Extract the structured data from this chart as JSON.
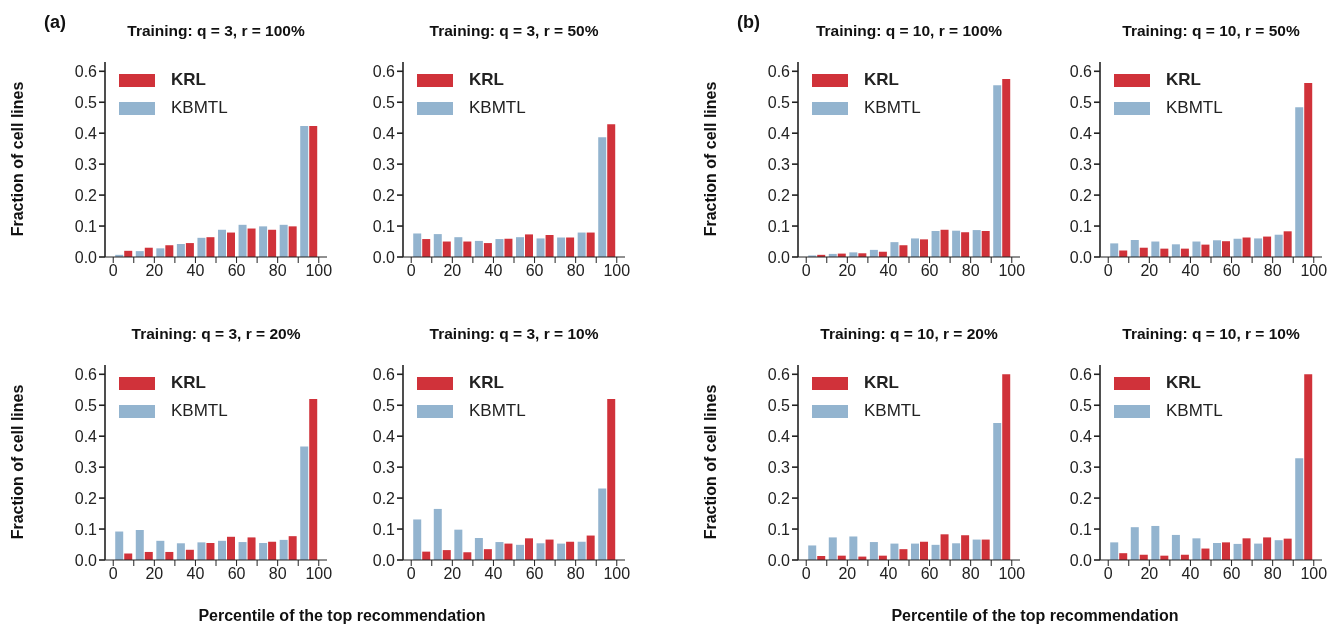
{
  "chart_data": [
    {
      "type": "bar",
      "title": "Training: q = 3, r = 100%",
      "ylabel": "Fraction of cell lines",
      "annotations": [
        "(a)"
      ],
      "legend": "top left",
      "x": [
        5,
        15,
        25,
        35,
        45,
        55,
        65,
        75,
        85,
        95
      ],
      "xlim": [
        -4,
        104
      ],
      "ylim": [
        0,
        0.63
      ],
      "xticks": [
        0,
        {
          "value": 10,
          "label": null
        },
        20,
        {
          "value": 30,
          "label": null
        },
        40,
        {
          "value": 50,
          "label": null
        },
        60,
        {
          "value": 70,
          "label": null
        },
        80,
        {
          "value": 90,
          "label": null
        },
        100
      ],
      "yticks": [
        {
          "value": 0,
          "label": "0.0"
        },
        {
          "value": 0.1,
          "label": "0.1"
        },
        {
          "value": 0.2,
          "label": "0.2"
        },
        {
          "value": 0.3,
          "label": "0.3"
        },
        {
          "value": 0.4,
          "label": "0.4"
        },
        {
          "value": 0.5,
          "label": "0.5"
        },
        {
          "value": 0.6,
          "label": "0.6"
        }
      ],
      "series": [
        {
          "name": "KRL",
          "color": "#d0323a",
          "values": [
            0.02,
            0.03,
            0.038,
            0.045,
            0.064,
            0.079,
            0.092,
            0.088,
            0.099,
            0.423
          ]
        },
        {
          "name": "KBMTL",
          "color": "#93b4cf",
          "values": [
            0.007,
            0.019,
            0.028,
            0.042,
            0.062,
            0.088,
            0.104,
            0.099,
            0.104,
            0.423
          ]
        }
      ]
    },
    {
      "type": "bar",
      "title": "Training: q = 3, r = 50%",
      "legend": "top left",
      "x": [
        5,
        15,
        25,
        35,
        45,
        55,
        65,
        75,
        85,
        95
      ],
      "xlim": [
        -4,
        104
      ],
      "ylim": [
        0,
        0.63
      ],
      "xticks": [
        0,
        {
          "value": 10,
          "label": null
        },
        20,
        {
          "value": 30,
          "label": null
        },
        40,
        {
          "value": 50,
          "label": null
        },
        60,
        {
          "value": 70,
          "label": null
        },
        80,
        {
          "value": 90,
          "label": null
        },
        100
      ],
      "yticks": [
        {
          "value": 0,
          "label": "0.0"
        },
        {
          "value": 0.1,
          "label": "0.1"
        },
        {
          "value": 0.2,
          "label": "0.2"
        },
        {
          "value": 0.3,
          "label": "0.3"
        },
        {
          "value": 0.4,
          "label": "0.4"
        },
        {
          "value": 0.5,
          "label": "0.5"
        },
        {
          "value": 0.6,
          "label": "0.6"
        }
      ],
      "series": [
        {
          "name": "KRL",
          "color": "#d0323a",
          "values": [
            0.058,
            0.05,
            0.05,
            0.045,
            0.059,
            0.073,
            0.071,
            0.063,
            0.079,
            0.429
          ]
        },
        {
          "name": "KBMTL",
          "color": "#93b4cf",
          "values": [
            0.076,
            0.074,
            0.064,
            0.052,
            0.058,
            0.064,
            0.06,
            0.063,
            0.079,
            0.387
          ]
        }
      ]
    },
    {
      "type": "bar",
      "title": "Training: q = 10, r = 100%",
      "ylabel": "Fraction of cell lines",
      "annotations": [
        "(b)"
      ],
      "legend": "top left",
      "x": [
        5,
        15,
        25,
        35,
        45,
        55,
        65,
        75,
        85,
        95
      ],
      "xlim": [
        -4,
        104
      ],
      "ylim": [
        0,
        0.63
      ],
      "xticks": [
        0,
        {
          "value": 10,
          "label": null
        },
        20,
        {
          "value": 30,
          "label": null
        },
        40,
        {
          "value": 50,
          "label": null
        },
        60,
        {
          "value": 70,
          "label": null
        },
        80,
        {
          "value": 90,
          "label": null
        },
        100
      ],
      "yticks": [
        {
          "value": 0,
          "label": "0.0"
        },
        {
          "value": 0.1,
          "label": "0.1"
        },
        {
          "value": 0.2,
          "label": "0.2"
        },
        {
          "value": 0.3,
          "label": "0.3"
        },
        {
          "value": 0.4,
          "label": "0.4"
        },
        {
          "value": 0.5,
          "label": "0.5"
        },
        {
          "value": 0.6,
          "label": "0.6"
        }
      ],
      "series": [
        {
          "name": "KRL",
          "color": "#d0323a",
          "values": [
            0.007,
            0.011,
            0.012,
            0.017,
            0.038,
            0.057,
            0.088,
            0.08,
            0.084,
            0.575
          ]
        },
        {
          "name": "KBMTL",
          "color": "#93b4cf",
          "values": [
            0.005,
            0.01,
            0.015,
            0.023,
            0.048,
            0.06,
            0.084,
            0.085,
            0.087,
            0.555
          ]
        }
      ]
    },
    {
      "type": "bar",
      "title": "Training: q = 10, r = 50%",
      "legend": "top left",
      "x": [
        5,
        15,
        25,
        35,
        45,
        55,
        65,
        75,
        85,
        95
      ],
      "xlim": [
        -4,
        104
      ],
      "ylim": [
        0,
        0.63
      ],
      "xticks": [
        0,
        {
          "value": 10,
          "label": null
        },
        20,
        {
          "value": 30,
          "label": null
        },
        40,
        {
          "value": 50,
          "label": null
        },
        60,
        {
          "value": 70,
          "label": null
        },
        80,
        {
          "value": 90,
          "label": null
        },
        100
      ],
      "yticks": [
        {
          "value": 0,
          "label": "0.0"
        },
        {
          "value": 0.1,
          "label": "0.1"
        },
        {
          "value": 0.2,
          "label": "0.2"
        },
        {
          "value": 0.3,
          "label": "0.3"
        },
        {
          "value": 0.4,
          "label": "0.4"
        },
        {
          "value": 0.5,
          "label": "0.5"
        },
        {
          "value": 0.6,
          "label": "0.6"
        }
      ],
      "series": [
        {
          "name": "KRL",
          "color": "#d0323a",
          "values": [
            0.021,
            0.03,
            0.027,
            0.027,
            0.04,
            0.051,
            0.063,
            0.066,
            0.083,
            0.562
          ]
        },
        {
          "name": "KBMTL",
          "color": "#93b4cf",
          "values": [
            0.044,
            0.055,
            0.05,
            0.041,
            0.05,
            0.054,
            0.059,
            0.06,
            0.072,
            0.484
          ]
        }
      ]
    },
    {
      "type": "bar",
      "title": "Training: q = 3, r = 20%",
      "ylabel": "Fraction of cell lines",
      "xlabel": "Percentile of the top recommendation",
      "legend": "top left",
      "x": [
        5,
        15,
        25,
        35,
        45,
        55,
        65,
        75,
        85,
        95
      ],
      "xlim": [
        -4,
        104
      ],
      "ylim": [
        0,
        0.63
      ],
      "xticks": [
        0,
        {
          "value": 10,
          "label": null
        },
        20,
        {
          "value": 30,
          "label": null
        },
        40,
        {
          "value": 50,
          "label": null
        },
        60,
        {
          "value": 70,
          "label": null
        },
        80,
        {
          "value": 90,
          "label": null
        },
        100
      ],
      "yticks": [
        {
          "value": 0,
          "label": "0.0"
        },
        {
          "value": 0.1,
          "label": "0.1"
        },
        {
          "value": 0.2,
          "label": "0.2"
        },
        {
          "value": 0.3,
          "label": "0.3"
        },
        {
          "value": 0.4,
          "label": "0.4"
        },
        {
          "value": 0.5,
          "label": "0.5"
        },
        {
          "value": 0.6,
          "label": "0.6"
        }
      ],
      "series": [
        {
          "name": "KRL",
          "color": "#d0323a",
          "values": [
            0.021,
            0.026,
            0.026,
            0.033,
            0.055,
            0.075,
            0.073,
            0.059,
            0.077,
            0.52
          ]
        },
        {
          "name": "KBMTL",
          "color": "#93b4cf",
          "values": [
            0.092,
            0.097,
            0.062,
            0.054,
            0.057,
            0.062,
            0.058,
            0.055,
            0.065,
            0.367
          ]
        }
      ]
    },
    {
      "type": "bar",
      "title": "Training: q = 3, r = 10%",
      "legend": "top left",
      "x": [
        5,
        15,
        25,
        35,
        45,
        55,
        65,
        75,
        85,
        95
      ],
      "xlim": [
        -4,
        104
      ],
      "ylim": [
        0,
        0.63
      ],
      "xticks": [
        0,
        {
          "value": 10,
          "label": null
        },
        20,
        {
          "value": 30,
          "label": null
        },
        40,
        {
          "value": 50,
          "label": null
        },
        60,
        {
          "value": 70,
          "label": null
        },
        80,
        {
          "value": 90,
          "label": null
        },
        100
      ],
      "yticks": [
        {
          "value": 0,
          "label": "0.0"
        },
        {
          "value": 0.1,
          "label": "0.1"
        },
        {
          "value": 0.2,
          "label": "0.2"
        },
        {
          "value": 0.3,
          "label": "0.3"
        },
        {
          "value": 0.4,
          "label": "0.4"
        },
        {
          "value": 0.5,
          "label": "0.5"
        },
        {
          "value": 0.6,
          "label": "0.6"
        }
      ],
      "series": [
        {
          "name": "KRL",
          "color": "#d0323a",
          "values": [
            0.027,
            0.032,
            0.025,
            0.035,
            0.053,
            0.07,
            0.066,
            0.059,
            0.079,
            0.52
          ]
        },
        {
          "name": "KBMTL",
          "color": "#93b4cf",
          "values": [
            0.131,
            0.165,
            0.098,
            0.071,
            0.058,
            0.049,
            0.054,
            0.053,
            0.059,
            0.231
          ]
        }
      ]
    },
    {
      "type": "bar",
      "title": "Training: q = 10, r = 20%",
      "ylabel": "Fraction of cell lines",
      "xlabel": "Percentile of the top recommendation",
      "legend": "top left",
      "x": [
        5,
        15,
        25,
        35,
        45,
        55,
        65,
        75,
        85,
        95
      ],
      "xlim": [
        -4,
        104
      ],
      "ylim": [
        0,
        0.63
      ],
      "xticks": [
        0,
        {
          "value": 10,
          "label": null
        },
        20,
        {
          "value": 30,
          "label": null
        },
        40,
        {
          "value": 50,
          "label": null
        },
        60,
        {
          "value": 70,
          "label": null
        },
        80,
        {
          "value": 90,
          "label": null
        },
        100
      ],
      "yticks": [
        {
          "value": 0,
          "label": "0.0"
        },
        {
          "value": 0.1,
          "label": "0.1"
        },
        {
          "value": 0.2,
          "label": "0.2"
        },
        {
          "value": 0.3,
          "label": "0.3"
        },
        {
          "value": 0.4,
          "label": "0.4"
        },
        {
          "value": 0.5,
          "label": "0.5"
        },
        {
          "value": 0.6,
          "label": "0.6"
        }
      ],
      "series": [
        {
          "name": "KRL",
          "color": "#d0323a",
          "values": [
            0.013,
            0.014,
            0.011,
            0.014,
            0.035,
            0.059,
            0.083,
            0.08,
            0.066,
            0.6
          ]
        },
        {
          "name": "KBMTL",
          "color": "#93b4cf",
          "values": [
            0.047,
            0.073,
            0.076,
            0.058,
            0.053,
            0.053,
            0.049,
            0.054,
            0.066,
            0.443
          ]
        }
      ]
    },
    {
      "type": "bar",
      "title": "Training: q = 10, r = 10%",
      "legend": "top left",
      "x": [
        5,
        15,
        25,
        35,
        45,
        55,
        65,
        75,
        85,
        95
      ],
      "xlim": [
        -4,
        104
      ],
      "ylim": [
        0,
        0.63
      ],
      "xticks": [
        0,
        {
          "value": 10,
          "label": null
        },
        20,
        {
          "value": 30,
          "label": null
        },
        40,
        {
          "value": 50,
          "label": null
        },
        60,
        {
          "value": 70,
          "label": null
        },
        80,
        {
          "value": 90,
          "label": null
        },
        100
      ],
      "yticks": [
        {
          "value": 0,
          "label": "0.0"
        },
        {
          "value": 0.1,
          "label": "0.1"
        },
        {
          "value": 0.2,
          "label": "0.2"
        },
        {
          "value": 0.3,
          "label": "0.3"
        },
        {
          "value": 0.4,
          "label": "0.4"
        },
        {
          "value": 0.5,
          "label": "0.5"
        },
        {
          "value": 0.6,
          "label": "0.6"
        }
      ],
      "series": [
        {
          "name": "KRL",
          "color": "#d0323a",
          "values": [
            0.022,
            0.017,
            0.014,
            0.017,
            0.037,
            0.057,
            0.07,
            0.073,
            0.069,
            0.6
          ]
        },
        {
          "name": "KBMTL",
          "color": "#93b4cf",
          "values": [
            0.057,
            0.106,
            0.11,
            0.081,
            0.07,
            0.055,
            0.052,
            0.053,
            0.064,
            0.329
          ]
        }
      ]
    }
  ]
}
